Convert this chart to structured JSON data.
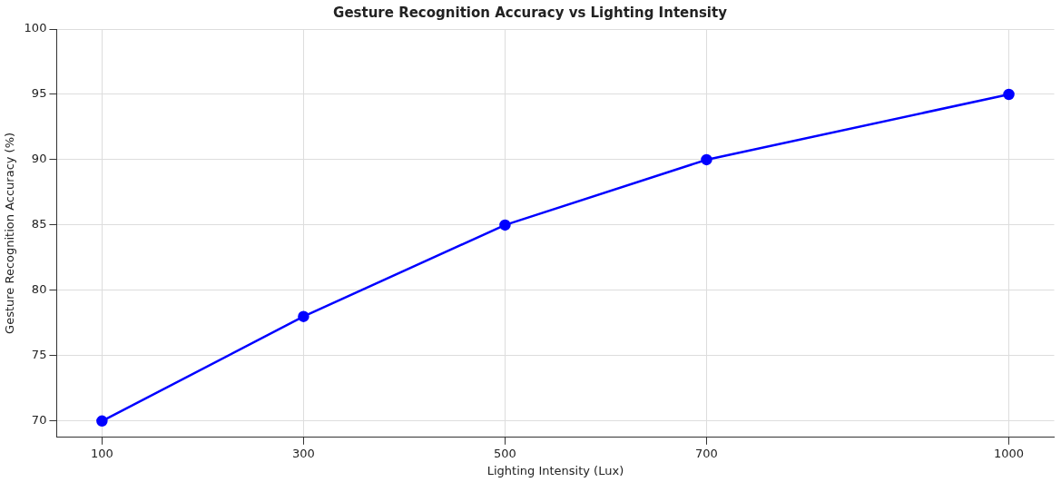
{
  "chart_data": {
    "type": "line",
    "title": "Gesture Recognition Accuracy vs Lighting Intensity",
    "xlabel": "Lighting Intensity (Lux)",
    "ylabel": "Gesture Recognition Accuracy (%)",
    "x": [
      100,
      300,
      500,
      700,
      1000
    ],
    "series": [
      {
        "color": "#0000ff",
        "values": [
          70,
          78,
          85,
          90,
          95
        ]
      }
    ],
    "xlim": [
      55,
      1045
    ],
    "xticks": [
      100,
      300,
      500,
      700,
      1000
    ],
    "ylim": [
      68.75,
      100
    ],
    "yticks": [
      70,
      75,
      80,
      85,
      90,
      95,
      100
    ],
    "grid": true,
    "marker": "circle",
    "line_style": "solid",
    "legend": false
  }
}
